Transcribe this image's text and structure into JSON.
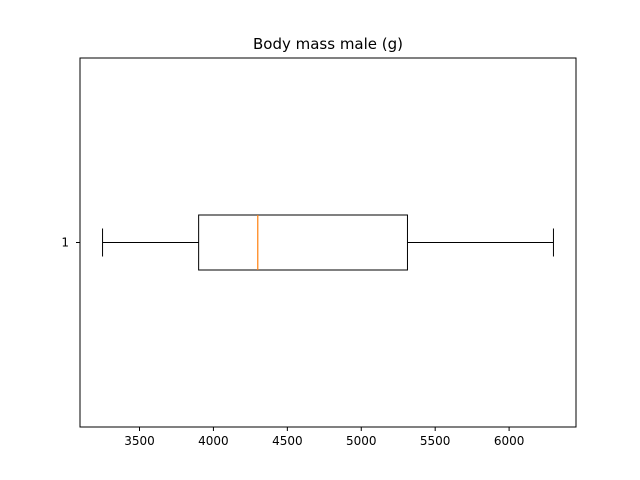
{
  "chart_data": {
    "type": "boxplot",
    "orientation": "horizontal",
    "title": "Body mass male (g)",
    "xlabel": "",
    "ylabel": "",
    "xlim": [
      3097.5,
      6452.5
    ],
    "x_ticks": [
      3500,
      4000,
      4500,
      5000,
      5500,
      6000
    ],
    "x_tick_labels": [
      "3500",
      "4000",
      "4500",
      "5000",
      "5500",
      "6000"
    ],
    "y_tick_labels": [
      "1"
    ],
    "grid": false,
    "legend": "none",
    "boxes": [
      {
        "label": "1",
        "whisker_low": 3250,
        "q1": 3900,
        "median": 4300,
        "q3": 5312.5,
        "whisker_high": 6300
      }
    ],
    "colors": {
      "box": "#000000",
      "median": "#ff7f0e",
      "axes": "#000000"
    }
  }
}
